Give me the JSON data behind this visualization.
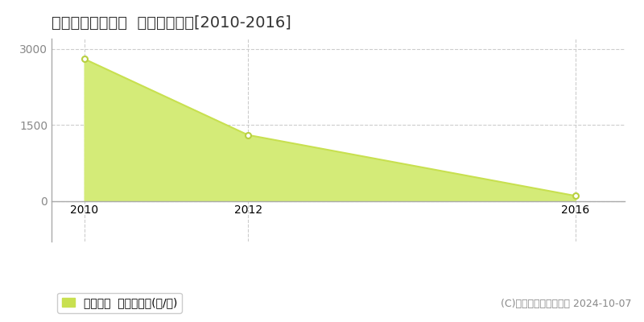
{
  "title": "高岡郡檮原町松谷  林地価格推移[2010-2016]",
  "x_values": [
    2010,
    2012,
    2016
  ],
  "y_values": [
    2800,
    1300,
    100
  ],
  "line_color": "#c8e050",
  "fill_color": "#d4eb78",
  "marker_color": "#ffffff",
  "marker_edge_color": "#b8d040",
  "ylim": [
    -800,
    3200
  ],
  "xlim_left": 2009.6,
  "xlim_right": 2016.6,
  "yticks": [
    0,
    1500,
    3000
  ],
  "xticks": [
    2010,
    2012,
    2016
  ],
  "grid_color": "#cccccc",
  "background_color": "#ffffff",
  "legend_label": "林地価格  平均坪単価(円/坪)",
  "legend_color": "#c8e050",
  "copyright_text": "(C)土地価格ドットコム 2024-10-07",
  "title_fontsize": 14,
  "tick_fontsize": 10,
  "legend_fontsize": 10,
  "copyright_fontsize": 9,
  "axis_color": "#aaaaaa",
  "title_color": "#333333",
  "tick_color": "#888888"
}
